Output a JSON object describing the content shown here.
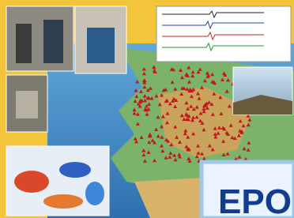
{
  "logo_text": "EPO"
}
